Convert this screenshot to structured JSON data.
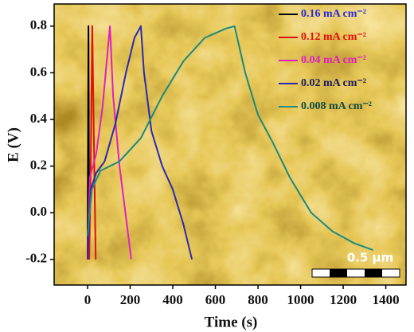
{
  "chart_data": {
    "type": "line",
    "xlabel": "Time (s)",
    "ylabel": "E (V)",
    "xlim": [
      -157,
      1495
    ],
    "ylim": [
      -0.31,
      0.895
    ],
    "xticks": [
      0,
      200,
      400,
      600,
      800,
      1000,
      1200,
      1400
    ],
    "yticks": [
      -0.2,
      {
        "value": 0,
        "label": "0.0"
      },
      0.2,
      0.4,
      0.6,
      0.8
    ],
    "legend": "upper right",
    "annotation": "0.5 μm",
    "series": [
      {
        "name": "0.16 mA cm⁻²",
        "color": "#000000",
        "label_color": "#2a2ad0",
        "x": [
          0,
          4,
          8
        ],
        "values": [
          -0.2,
          0.8,
          -0.2
        ]
      },
      {
        "name": "0.12 mA cm⁻²",
        "color": "#e01010",
        "label_color": "#e01010",
        "x": [
          8,
          14,
          22,
          30,
          38
        ],
        "values": [
          -0.2,
          0.15,
          0.8,
          0.3,
          -0.2
        ]
      },
      {
        "name": "0.04 mA cm⁻²",
        "color": "#e020c0",
        "label_color": "#e020c0",
        "x": [
          0,
          10,
          40,
          70,
          105,
          120,
          150,
          205
        ],
        "values": [
          -0.2,
          0.15,
          0.25,
          0.45,
          0.8,
          0.5,
          0.2,
          -0.2
        ]
      },
      {
        "name": "0.02 mA cm⁻²",
        "color": "#2a2ab0",
        "label_color": "#1a1a60",
        "x": [
          0,
          15,
          40,
          80,
          130,
          180,
          220,
          250,
          265,
          300,
          350,
          400,
          450,
          490
        ],
        "values": [
          -0.2,
          0.1,
          0.17,
          0.22,
          0.38,
          0.6,
          0.75,
          0.8,
          0.6,
          0.35,
          0.2,
          0.1,
          -0.05,
          -0.2
        ]
      },
      {
        "name": "0.008 mA cm⁻²",
        "color": "#1a8a80",
        "label_color": "#104a40",
        "x": [
          0,
          20,
          60,
          150,
          250,
          350,
          450,
          550,
          650,
          690,
          740,
          800,
          870,
          950,
          1050,
          1150,
          1250,
          1340
        ],
        "values": [
          -0.1,
          0.1,
          0.18,
          0.22,
          0.32,
          0.5,
          0.65,
          0.75,
          0.79,
          0.8,
          0.6,
          0.42,
          0.3,
          0.15,
          0.0,
          -0.08,
          -0.13,
          -0.16
        ]
      }
    ]
  }
}
